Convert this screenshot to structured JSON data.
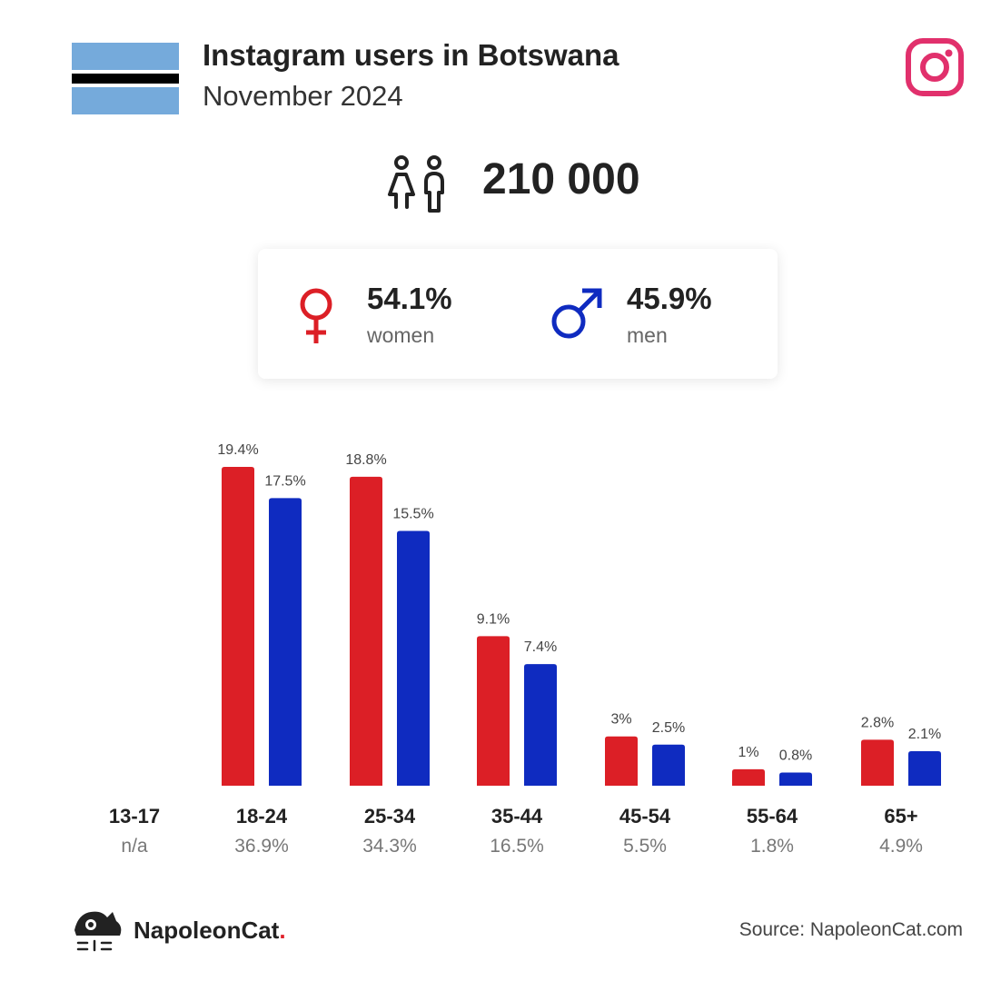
{
  "header": {
    "title": "Instagram users in Botswana",
    "subtitle": "November 2024",
    "flag_icon": "botswana-flag",
    "platform_icon": "instagram-icon",
    "colors": {
      "flag_blue": "#75aadb",
      "flag_black": "#000000",
      "instagram_pink": "#e1306c"
    }
  },
  "total": {
    "value": "210 000",
    "icon": "people-icon"
  },
  "gender": {
    "women": {
      "value": "54.1%",
      "label": "women",
      "icon": "female-symbol-icon",
      "color": "#dc1f26"
    },
    "men": {
      "value": "45.9%",
      "label": "men",
      "icon": "male-symbol-icon",
      "color": "#0f2bc0"
    }
  },
  "chart_data": {
    "type": "bar",
    "categories": [
      "13-17",
      "18-24",
      "25-34",
      "35-44",
      "45-54",
      "55-64",
      "65+"
    ],
    "category_totals": [
      "n/a",
      "36.9%",
      "34.3%",
      "16.5%",
      "5.5%",
      "1.8%",
      "4.9%"
    ],
    "series": [
      {
        "color": "#dc1f26",
        "values": [
          null,
          19.4,
          18.8,
          9.1,
          3,
          1,
          2.8
        ],
        "labels": [
          "",
          "19.4%",
          "18.8%",
          "9.1%",
          "3%",
          "1%",
          "2.8%"
        ]
      },
      {
        "color": "#0f2bc0",
        "values": [
          null,
          17.5,
          15.5,
          7.4,
          2.5,
          0.8,
          2.1
        ],
        "labels": [
          "",
          "17.5%",
          "15.5%",
          "7.4%",
          "2.5%",
          "0.8%",
          "2.1%"
        ]
      }
    ],
    "ylim": [
      0,
      19.4
    ],
    "grid": false,
    "legend": "none"
  },
  "footer": {
    "brand_name": "NapoleonCat",
    "brand_dot": ".",
    "brand_icon": "napoleoncat-logo-icon",
    "source": "Source: NapoleonCat.com"
  }
}
